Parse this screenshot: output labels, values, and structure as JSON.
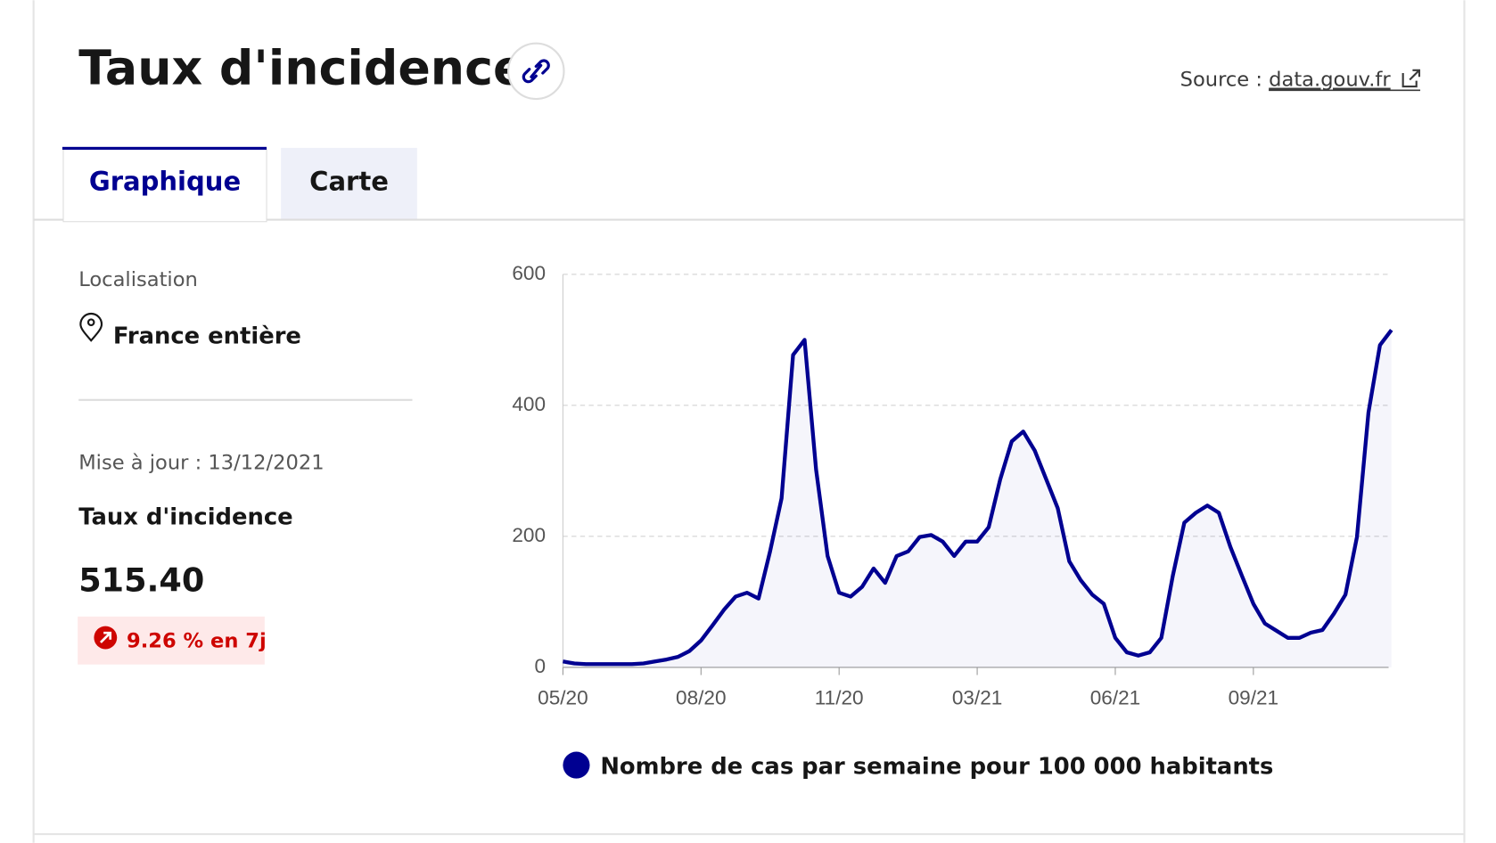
{
  "header": {
    "title": "Taux d'incidence",
    "source_label": "Source :",
    "source_link": "data.gouv.fr"
  },
  "tabs": [
    "Graphique",
    "Carte"
  ],
  "sidebar": {
    "location_label": "Localisation",
    "location": "France entière",
    "updated": "Mise à jour : 13/12/2021",
    "metric_title": "Taux d'incidence",
    "metric_value": "515.40",
    "change": "9.26 % en 7j"
  },
  "chart_data": {
    "type": "line",
    "categories": [
      "05/20",
      null,
      null,
      null,
      null,
      null,
      null,
      null,
      null,
      null,
      null,
      null,
      "08/20",
      null,
      null,
      null,
      null,
      null,
      null,
      null,
      null,
      null,
      null,
      null,
      "11/20",
      null,
      null,
      null,
      null,
      null,
      null,
      null,
      null,
      null,
      null,
      null,
      "03/21",
      null,
      null,
      null,
      null,
      null,
      null,
      null,
      null,
      null,
      null,
      null,
      "06/21",
      null,
      null,
      null,
      null,
      null,
      null,
      null,
      null,
      null,
      null,
      null,
      "09/21",
      null,
      null,
      null,
      null,
      null,
      null,
      null,
      null,
      null,
      null,
      null,
      null
    ],
    "series": [
      {
        "name": "Nombre de cas par semaine pour 100 000 habitants",
        "color": "#000091",
        "values": [
          9,
          6,
          5,
          5,
          5,
          5,
          5,
          6,
          9,
          12,
          16,
          25,
          41,
          64,
          88,
          108,
          114,
          105,
          177,
          258,
          477,
          500,
          302,
          170,
          114,
          108,
          123,
          151,
          129,
          170,
          177,
          199,
          202,
          192,
          170,
          192,
          192,
          214,
          287,
          345,
          360,
          331,
          287,
          243,
          162,
          133,
          111,
          97,
          45,
          23,
          18,
          23,
          45,
          140,
          221,
          236,
          247,
          236,
          184,
          140,
          97,
          67,
          56,
          45,
          45,
          53,
          57,
          82,
          111,
          199,
          389,
          492,
          515
        ]
      }
    ],
    "ylim": [
      0,
      600
    ],
    "yticks": [
      0,
      200,
      400,
      600
    ],
    "grid": true
  }
}
